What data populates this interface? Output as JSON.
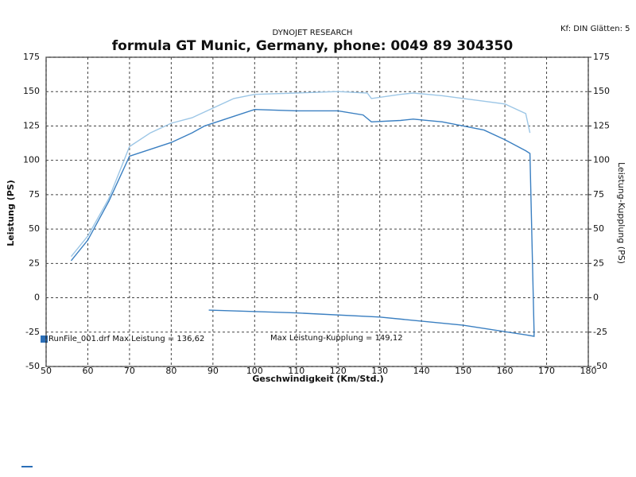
{
  "chart_data": {
    "type": "line",
    "header": "DYNOJET RESEARCH",
    "settings_text": "Kf: DIN  Glätten: 5",
    "title": "formula GT  Munic, Germany, phone: 0049 89 304350",
    "x_label": "Geschwindigkeit (Km/Std.)",
    "y_label": "Leistung (PS)",
    "y2_label": "Leistung-Kupplung (PS)",
    "annotations": [
      "RunFile_001.drf Max Leistung = 136,62",
      "Max Leistung-Kupplung = 149,12"
    ],
    "xlim": [
      50,
      180
    ],
    "xticks": [
      50,
      60,
      70,
      80,
      90,
      100,
      110,
      120,
      130,
      140,
      150,
      160,
      170,
      180
    ],
    "ylim": [
      -50,
      175
    ],
    "yticks": [
      -50,
      -25,
      0,
      25,
      50,
      75,
      100,
      125,
      150,
      175
    ],
    "y2lim": [
      -50,
      175
    ],
    "y2ticks": [
      -50,
      -25,
      0,
      25,
      50,
      75,
      100,
      125,
      150,
      175
    ],
    "grid": true,
    "series": [
      {
        "color": "#3a7fc1",
        "x": [
          56,
          60,
          65,
          70,
          75,
          80,
          85,
          88,
          95,
          100,
          110,
          120,
          126,
          128,
          135,
          138,
          145,
          155,
          160,
          165,
          166,
          167,
          167,
          165,
          150,
          130,
          110,
          89
        ],
        "values": [
          27,
          42,
          70,
          103,
          108,
          113,
          120,
          125,
          132,
          137,
          136,
          136,
          133,
          128,
          129,
          130,
          128,
          122,
          115,
          107,
          105,
          -25,
          -28,
          -27,
          -20,
          -14,
          -11,
          -9
        ]
      },
      {
        "color": "#9cc6e6",
        "axis": "y2",
        "x": [
          56,
          60,
          65,
          70,
          75,
          80,
          85,
          90,
          95,
          100,
          110,
          120,
          127,
          128,
          135,
          138,
          145,
          155,
          160,
          165,
          166
        ],
        "values": [
          30,
          45,
          72,
          110,
          120,
          127,
          131,
          138,
          145,
          148,
          149,
          150,
          149,
          145,
          148,
          149,
          147,
          143,
          141,
          134,
          120
        ]
      }
    ]
  }
}
